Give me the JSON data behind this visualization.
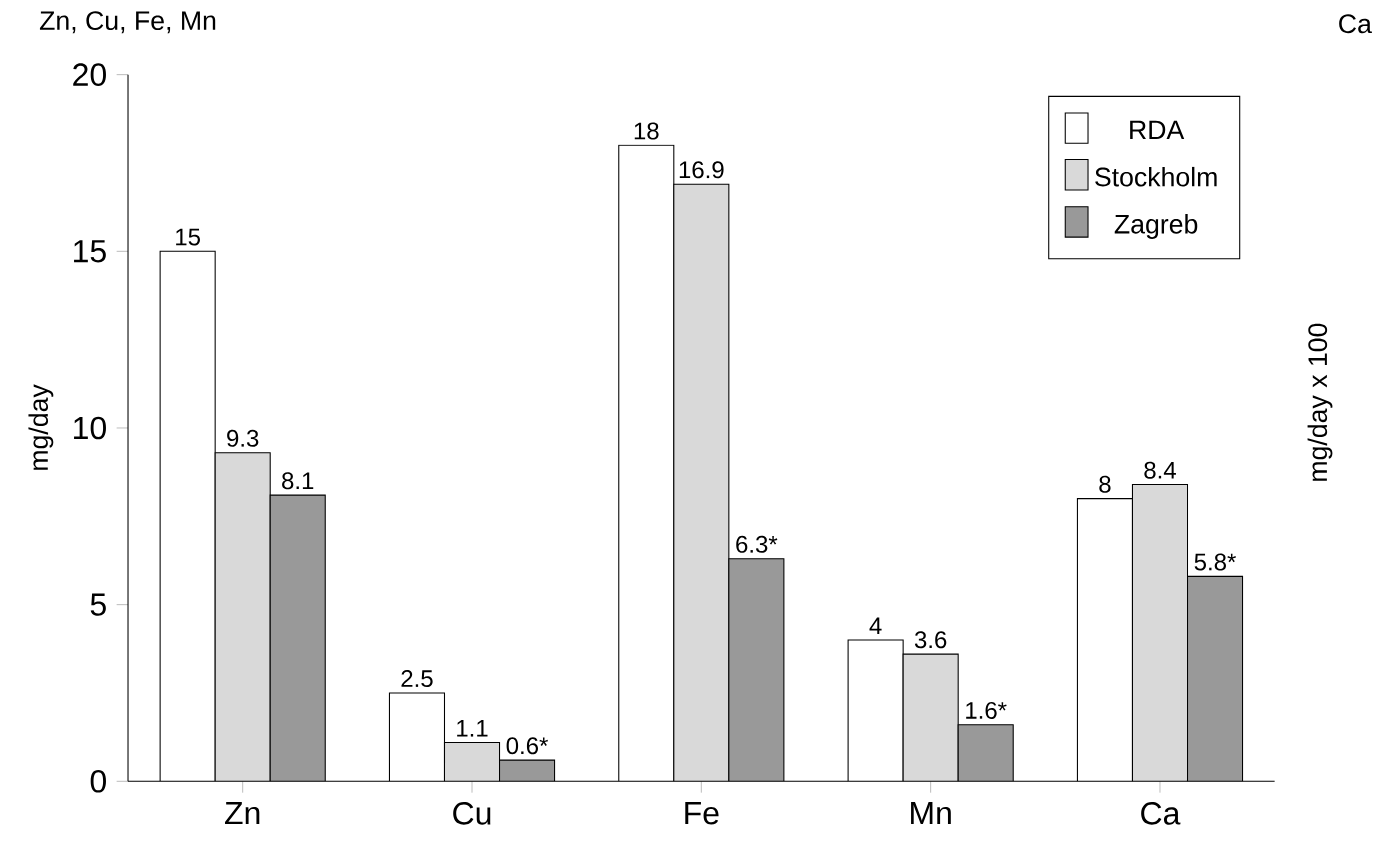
{
  "chart_data": {
    "type": "bar",
    "categories": [
      "Zn",
      "Cu",
      "Fe",
      "Mn",
      "Ca"
    ],
    "series": [
      {
        "name": "RDA",
        "color": "#ffffff",
        "values": [
          15,
          2.5,
          18,
          4,
          8
        ],
        "value_labels": [
          "15",
          "2.5",
          "18",
          "4",
          "8"
        ]
      },
      {
        "name": "Stockholm",
        "color": "#d9d9d9",
        "values": [
          9.3,
          1.1,
          16.9,
          3.6,
          8.4
        ],
        "value_labels": [
          "9.3",
          "1.1",
          "16.9",
          "3.6",
          "8.4"
        ]
      },
      {
        "name": "Zagreb",
        "color": "#999999",
        "values": [
          8.1,
          0.6,
          6.3,
          1.6,
          5.8
        ],
        "value_labels": [
          "8.1",
          "0.6*",
          "6.3*",
          "1.6*",
          "5.8*"
        ]
      }
    ],
    "ylim": [
      0,
      20
    ],
    "yticks": [
      0,
      5,
      10,
      15,
      20
    ],
    "ylabel": "mg/day",
    "y2label": "mg/day x 100",
    "annotations": [
      "Zn, Cu, Fe, Mn",
      "Ca"
    ],
    "legend": "top right"
  }
}
